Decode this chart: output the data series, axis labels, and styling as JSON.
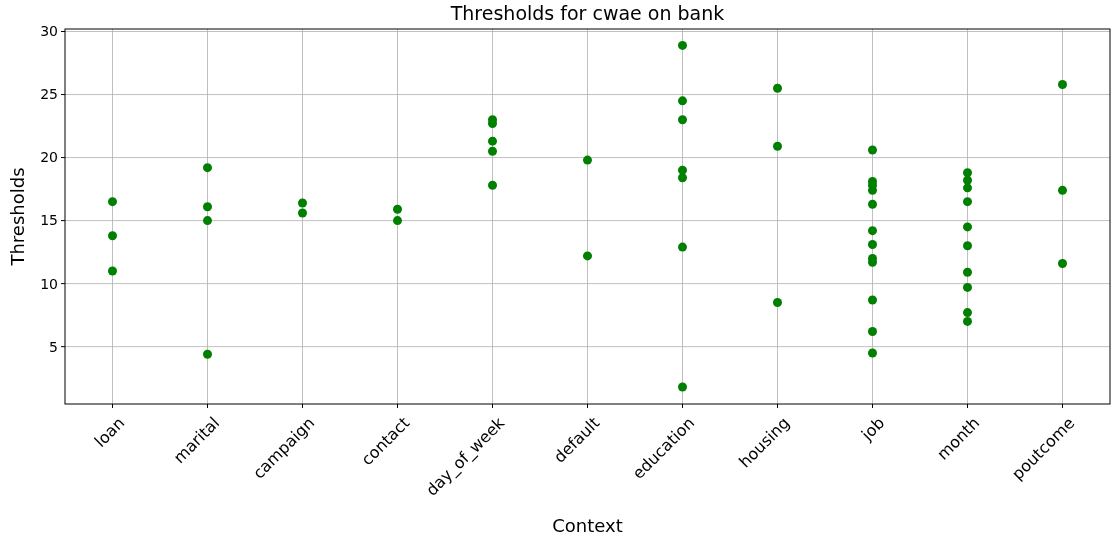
{
  "chart_data": {
    "type": "scatter",
    "title": "Thresholds for cwae on bank",
    "xlabel": "Context",
    "ylabel": "Thresholds",
    "categories": [
      "loan",
      "marital",
      "campaign",
      "contact",
      "day_of_week",
      "default",
      "education",
      "housing",
      "job",
      "month",
      "poutcome"
    ],
    "series": [
      {
        "color": "#008000",
        "x": [
          "loan",
          "loan",
          "loan",
          "marital",
          "marital",
          "marital",
          "marital",
          "campaign",
          "campaign",
          "contact",
          "contact",
          "day_of_week",
          "day_of_week",
          "day_of_week",
          "day_of_week",
          "day_of_week",
          "default",
          "default",
          "education",
          "education",
          "education",
          "education",
          "education",
          "education",
          "education",
          "housing",
          "housing",
          "housing",
          "job",
          "job",
          "job",
          "job",
          "job",
          "job",
          "job",
          "job",
          "job",
          "job",
          "job",
          "job",
          "month",
          "month",
          "month",
          "month",
          "month",
          "month",
          "month",
          "month",
          "month",
          "month",
          "poutcome",
          "poutcome",
          "poutcome"
        ],
        "values": [
          16.5,
          13.8,
          11.0,
          19.2,
          16.1,
          15.0,
          4.4,
          16.4,
          15.6,
          15.9,
          15.0,
          23.0,
          22.7,
          21.3,
          20.5,
          17.8,
          19.8,
          12.2,
          28.9,
          24.5,
          23.0,
          19.0,
          18.4,
          12.9,
          1.8,
          25.5,
          20.9,
          8.5,
          20.6,
          18.1,
          17.8,
          17.4,
          16.3,
          14.2,
          13.1,
          12.0,
          11.7,
          8.7,
          6.2,
          4.5,
          18.8,
          18.2,
          17.6,
          16.5,
          14.5,
          13.0,
          10.9,
          9.7,
          7.7,
          7.0,
          25.8,
          17.4,
          11.6
        ]
      }
    ],
    "ylim": [
      0.45,
      30.2
    ],
    "yticks": [
      5,
      10,
      15,
      20,
      25,
      30
    ],
    "grid": true,
    "marker": "circle"
  }
}
